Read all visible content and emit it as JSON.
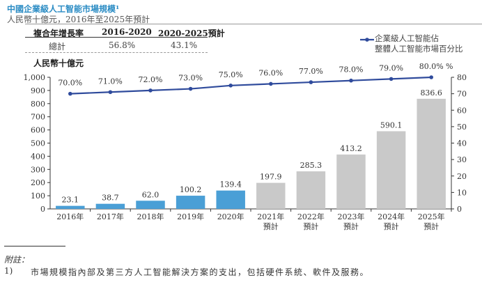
{
  "header": {
    "title": "中國企業級人工智能市場規模¹",
    "subtitle": "人民幣十億元，2016年至2025年預計"
  },
  "cagr_table": {
    "headers": [
      "複合年增長率",
      "2016-2020",
      "2020-2025預計"
    ],
    "row": [
      "總計",
      "56.8%",
      "43.1%"
    ]
  },
  "chart_data": {
    "type": "bar+line",
    "categories": [
      "2016年",
      "2017年",
      "2018年",
      "2019年",
      "2020年",
      "2021年\n預計",
      "2022年\n預計",
      "2023年\n預計",
      "2024年\n預計",
      "2025年\n預計"
    ],
    "ylabel": "人民幣十億元",
    "ylim": [
      0,
      1000
    ],
    "yticks": [
      "0",
      "100",
      "200",
      "300",
      "400",
      "500",
      "600",
      "700",
      "800",
      "900",
      "1,000"
    ],
    "y2label": "%",
    "y2lim": [
      0,
      80
    ],
    "y2ticks": [
      "0",
      "10",
      "20",
      "30",
      "40",
      "50",
      "60",
      "70",
      "80"
    ],
    "bars": {
      "values": [
        23.1,
        38.7,
        62.0,
        100.2,
        139.4,
        197.9,
        285.3,
        413.2,
        590.1,
        836.6
      ],
      "labels": [
        "23.1",
        "38.7",
        "62.0",
        "100.2",
        "139.4",
        "197.9",
        "285.3",
        "413.2",
        "590.1",
        "836.6"
      ],
      "colors": {
        "historical": "#4a9fd6",
        "forecast": "#c9c9c9"
      }
    },
    "line": {
      "name": "企業級人工智能佔整體人工智能市場百分比",
      "values": [
        70,
        71,
        72,
        73,
        75,
        76,
        77,
        78,
        79,
        80
      ],
      "labels": [
        "70.0%",
        "71.0%",
        "72.0%",
        "73.0%",
        "75.0%",
        "76.0%",
        "77.0%",
        "78.0%",
        "79.0%",
        "80.0%"
      ],
      "color": "#2f4b9c"
    },
    "legend": "top-right",
    "grid": false
  },
  "legend": {
    "line1": "企業級人工智能佔",
    "line2": "整體人工智能市場百分比"
  },
  "footnote": {
    "heading": "附註：",
    "number": "1)",
    "text": "市場規模指內部及第三方人工智能解決方案的支出，包括硬件系統、軟件及服務。"
  }
}
